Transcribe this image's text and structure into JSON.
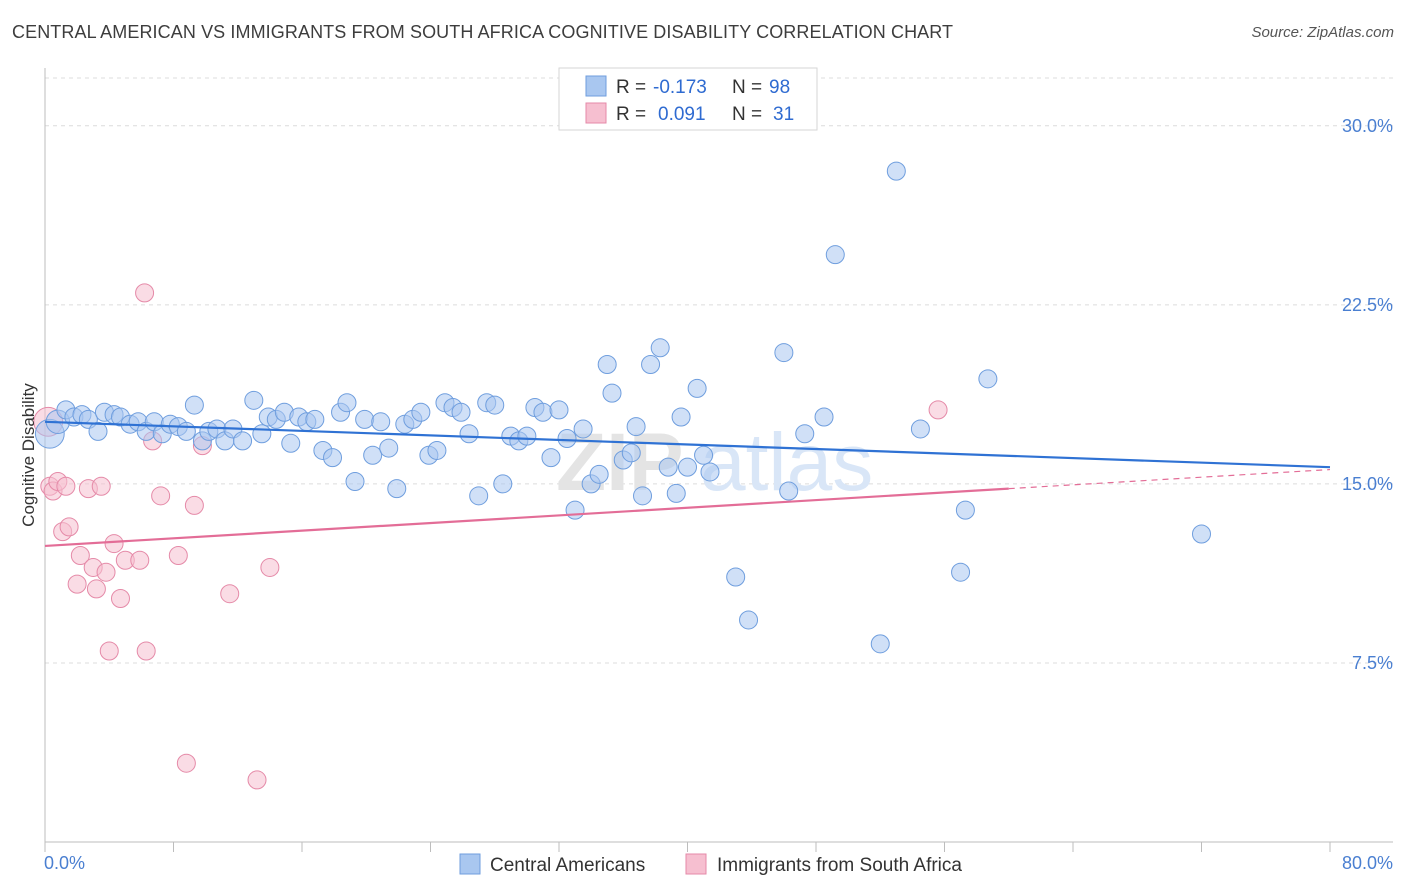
{
  "title": "CENTRAL AMERICAN VS IMMIGRANTS FROM SOUTH AFRICA COGNITIVE DISABILITY CORRELATION CHART",
  "source": "Source: ZipAtlas.com",
  "watermark": {
    "zip": "ZIP",
    "atlas": "atlas"
  },
  "colors": {
    "blue_fill": "#a9c7f0",
    "blue_stroke": "#6f9ede",
    "blue_line": "#2f72d4",
    "pink_fill": "#f6bfd0",
    "pink_stroke": "#e58aa8",
    "pink_line": "#e36d97",
    "grid": "#dcdcdc",
    "tick_text": "#4a7fd1"
  },
  "legend": {
    "rows": [
      {
        "r_label": "R =",
        "r_value": "-0.173",
        "n_label": "N =",
        "n_value": "98"
      },
      {
        "r_label": "R =",
        "r_value": "0.091",
        "n_label": "N =",
        "n_value": "31"
      }
    ]
  },
  "chart_data": {
    "type": "scatter",
    "title": "CENTRAL AMERICAN VS IMMIGRANTS FROM SOUTH AFRICA COGNITIVE DISABILITY CORRELATION CHART",
    "xlabel": "",
    "ylabel": "Cognitive Disability",
    "xlim": [
      0,
      80
    ],
    "ylim": [
      0,
      32
    ],
    "x_tick_labels": [
      "0.0%",
      "80.0%"
    ],
    "y_ticks": [
      7.5,
      15.0,
      22.5,
      30.0
    ],
    "y_tick_labels": [
      "7.5%",
      "15.0%",
      "22.5%",
      "30.0%"
    ],
    "grid": true,
    "legend_position": "top-center",
    "series": [
      {
        "name": "Central Americans",
        "color": "#a9c7f0",
        "trend": {
          "x": [
            0,
            80
          ],
          "y": [
            17.6,
            15.7
          ]
        },
        "points": [
          [
            0.3,
            17.1,
            1.6
          ],
          [
            0.8,
            17.6,
            1.3
          ],
          [
            1.3,
            18.1,
            1
          ],
          [
            1.8,
            17.8,
            1
          ],
          [
            2.3,
            17.9,
            1
          ],
          [
            2.7,
            17.7,
            1
          ],
          [
            3.3,
            17.2,
            1
          ],
          [
            3.7,
            18.0,
            1
          ],
          [
            4.3,
            17.9,
            1
          ],
          [
            4.7,
            17.8,
            1
          ],
          [
            5.3,
            17.5,
            1
          ],
          [
            5.8,
            17.6,
            1
          ],
          [
            6.3,
            17.2,
            1
          ],
          [
            6.8,
            17.6,
            1
          ],
          [
            7.3,
            17.1,
            1
          ],
          [
            7.8,
            17.5,
            1
          ],
          [
            8.3,
            17.4,
            1
          ],
          [
            8.8,
            17.2,
            1
          ],
          [
            9.3,
            18.3,
            1
          ],
          [
            9.8,
            16.8,
            1
          ],
          [
            10.2,
            17.2,
            1
          ],
          [
            10.7,
            17.3,
            1
          ],
          [
            11.2,
            16.8,
            1
          ],
          [
            11.7,
            17.3,
            1
          ],
          [
            12.3,
            16.8,
            1
          ],
          [
            13.0,
            18.5,
            1
          ],
          [
            13.5,
            17.1,
            1
          ],
          [
            13.9,
            17.8,
            1
          ],
          [
            14.4,
            17.7,
            1
          ],
          [
            14.9,
            18.0,
            1
          ],
          [
            15.3,
            16.7,
            1
          ],
          [
            15.8,
            17.8,
            1
          ],
          [
            16.3,
            17.6,
            1
          ],
          [
            16.8,
            17.7,
            1
          ],
          [
            17.3,
            16.4,
            1
          ],
          [
            17.9,
            16.1,
            1
          ],
          [
            18.4,
            18.0,
            1
          ],
          [
            18.8,
            18.4,
            1
          ],
          [
            19.3,
            15.1,
            1
          ],
          [
            19.9,
            17.7,
            1
          ],
          [
            20.4,
            16.2,
            1
          ],
          [
            20.9,
            17.6,
            1
          ],
          [
            21.4,
            16.5,
            1
          ],
          [
            21.9,
            14.8,
            1
          ],
          [
            22.4,
            17.5,
            1
          ],
          [
            22.9,
            17.7,
            1
          ],
          [
            23.4,
            18.0,
            1
          ],
          [
            23.9,
            16.2,
            1
          ],
          [
            24.4,
            16.4,
            1
          ],
          [
            24.9,
            18.4,
            1
          ],
          [
            25.4,
            18.2,
            1
          ],
          [
            25.9,
            18.0,
            1
          ],
          [
            26.4,
            17.1,
            1
          ],
          [
            27.0,
            14.5,
            1
          ],
          [
            27.5,
            18.4,
            1
          ],
          [
            28.0,
            18.3,
            1
          ],
          [
            28.5,
            15.0,
            1
          ],
          [
            29.0,
            17.0,
            1
          ],
          [
            29.5,
            16.8,
            1
          ],
          [
            30.0,
            17.0,
            1
          ],
          [
            30.5,
            18.2,
            1
          ],
          [
            31.0,
            18.0,
            1
          ],
          [
            31.5,
            16.1,
            1
          ],
          [
            32.0,
            18.1,
            1
          ],
          [
            32.5,
            16.9,
            1
          ],
          [
            33.0,
            13.9,
            1
          ],
          [
            33.5,
            17.3,
            1
          ],
          [
            34.0,
            15.0,
            1
          ],
          [
            34.5,
            15.4,
            1
          ],
          [
            35.0,
            20.0,
            1
          ],
          [
            35.3,
            18.8,
            1
          ],
          [
            36.0,
            16.0,
            1
          ],
          [
            36.5,
            16.3,
            1
          ],
          [
            36.8,
            17.4,
            1
          ],
          [
            37.2,
            14.5,
            1
          ],
          [
            37.7,
            20.0,
            1
          ],
          [
            38.3,
            20.7,
            1
          ],
          [
            38.8,
            15.7,
            1
          ],
          [
            39.3,
            14.6,
            1
          ],
          [
            39.6,
            17.8,
            1
          ],
          [
            40.0,
            15.7,
            1
          ],
          [
            40.6,
            19.0,
            1
          ],
          [
            41.0,
            16.2,
            1
          ],
          [
            41.4,
            15.5,
            1
          ],
          [
            43.0,
            11.1,
            1
          ],
          [
            43.8,
            9.3,
            1
          ],
          [
            46.0,
            20.5,
            1
          ],
          [
            46.3,
            14.7,
            1
          ],
          [
            47.3,
            17.1,
            1
          ],
          [
            48.5,
            17.8,
            1
          ],
          [
            49.2,
            24.6,
            1
          ],
          [
            52.0,
            8.3,
            1
          ],
          [
            53.0,
            28.1,
            1
          ],
          [
            54.5,
            17.3,
            1
          ],
          [
            57.0,
            11.3,
            1
          ],
          [
            57.3,
            13.9,
            1
          ],
          [
            58.7,
            19.4,
            1
          ],
          [
            72.0,
            12.9,
            1
          ]
        ]
      },
      {
        "name": "Immigrants from South Africa",
        "color": "#f6bfd0",
        "trend": {
          "x": [
            0,
            60
          ],
          "y": [
            12.4,
            14.8
          ]
        },
        "trend_dashed": {
          "x": [
            60,
            80
          ],
          "y": [
            14.8,
            15.6
          ]
        },
        "points": [
          [
            0.2,
            17.6,
            1.6
          ],
          [
            0.3,
            14.9,
            1
          ],
          [
            0.5,
            14.7,
            1
          ],
          [
            0.8,
            15.1,
            1
          ],
          [
            1.1,
            13.0,
            1
          ],
          [
            1.3,
            14.9,
            1
          ],
          [
            1.5,
            13.2,
            1
          ],
          [
            2.0,
            10.8,
            1
          ],
          [
            2.2,
            12.0,
            1
          ],
          [
            2.7,
            14.8,
            1
          ],
          [
            3.0,
            11.5,
            1
          ],
          [
            3.2,
            10.6,
            1
          ],
          [
            3.5,
            14.9,
            1
          ],
          [
            3.8,
            11.3,
            1
          ],
          [
            4.0,
            8.0,
            1
          ],
          [
            4.3,
            12.5,
            1
          ],
          [
            4.7,
            10.2,
            1
          ],
          [
            5.0,
            11.8,
            1
          ],
          [
            5.9,
            11.8,
            1
          ],
          [
            6.2,
            23.0,
            1
          ],
          [
            6.3,
            8.0,
            1
          ],
          [
            6.7,
            16.8,
            1
          ],
          [
            7.2,
            14.5,
            1
          ],
          [
            8.3,
            12.0,
            1
          ],
          [
            8.8,
            3.3,
            1
          ],
          [
            9.3,
            14.1,
            1
          ],
          [
            9.8,
            16.6,
            1
          ],
          [
            11.5,
            10.4,
            1
          ],
          [
            13.2,
            2.6,
            1
          ],
          [
            14.0,
            11.5,
            1
          ],
          [
            55.6,
            18.1,
            1
          ]
        ]
      }
    ]
  }
}
